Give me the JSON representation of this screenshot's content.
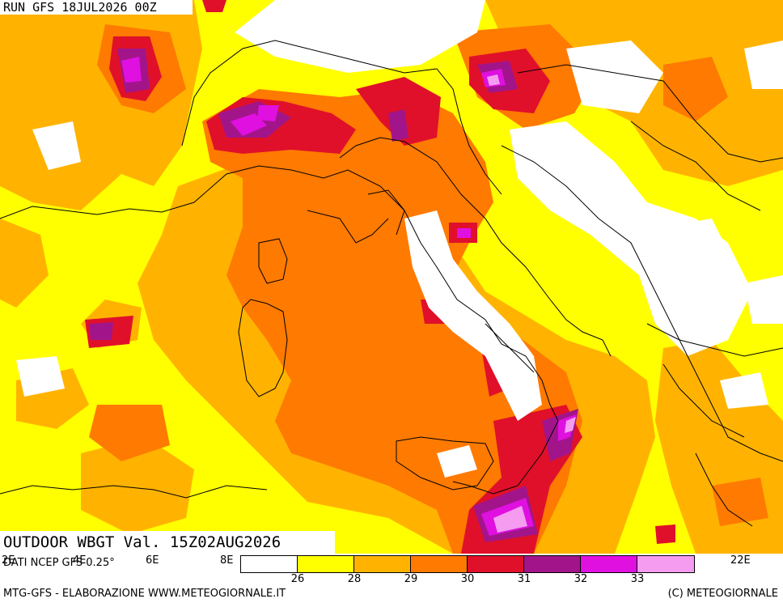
{
  "header": {
    "run_label": "RUN GFS 18JUL2026 00Z"
  },
  "title": "OUTDOOR WBGT Val. 15Z02AUG2026",
  "longitudes": [
    "2E",
    "4E",
    "6E",
    "8E",
    "22E"
  ],
  "data_source": "DATI NCEP GFS 0.25°",
  "legend": {
    "colors": [
      "#ffffff",
      "#ffff00",
      "#ffb300",
      "#ff7a00",
      "#e0102a",
      "#a2158a",
      "#e010e0",
      "#f59cf0"
    ],
    "ticks": [
      "26",
      "28",
      "29",
      "30",
      "31",
      "32",
      "33"
    ]
  },
  "footer": {
    "left": "MTG-GFS - ELABORAZIONE WWW.METEOGIORNALE.IT",
    "right": "(C) METEOGIORNALE"
  },
  "map": {
    "region": "Italy and Central Mediterranean",
    "field": "Outdoor WBGT",
    "colors": {
      "sea_base": "#ffff00",
      "warm": "#ffb300",
      "hot": "#ff7a00",
      "very_hot": "#e0102a",
      "extreme": "#a2158a",
      "magenta": "#e010e0",
      "pink": "#f59cf0",
      "low": "#ffffff",
      "border": "#000000"
    }
  }
}
